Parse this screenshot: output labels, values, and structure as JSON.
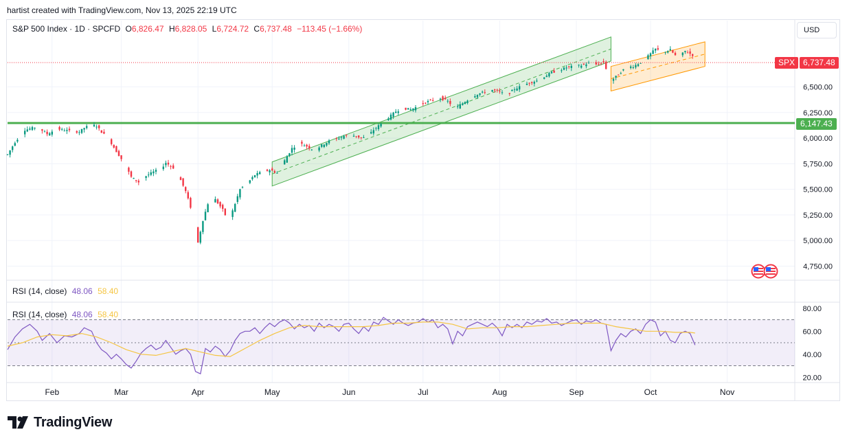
{
  "caption": "hartist created with TradingView.com, Nov 13, 2025 22:19 UTC",
  "main_legend": {
    "symbol": "S&P 500 Index · 1D · SPCFD",
    "o_label": "O",
    "o_value": "6,826.47",
    "h_label": "H",
    "h_value": "6,828.05",
    "l_label": "L",
    "l_value": "6,724.72",
    "c_label": "C",
    "c_value": "6,737.48",
    "change": "−113.45 (−1.66%)"
  },
  "currency_button": "USD",
  "price_tag": {
    "symbol": "SPX",
    "value": "6,737.48"
  },
  "level_tag": {
    "value": "6,147.43"
  },
  "rsi_legend": {
    "label": "RSI (14, close)",
    "rsi": "48.06",
    "ma": "58.40"
  },
  "brand": "TradingView",
  "chart_data": [
    {
      "type": "candlestick",
      "title": "S&P 500 Index · 1D · SPCFD",
      "ylim": [
        4650,
        7200
      ],
      "y_ticks": [
        "6,500.00",
        "6,250.00",
        "6,000.00",
        "5,750.00",
        "5,500.00",
        "5,250.00",
        "5,000.00",
        "4,750.00"
      ],
      "y_tick_values": [
        6500,
        6250,
        6000,
        5750,
        5500,
        5250,
        5000,
        4750
      ],
      "x_ticks": [
        "Feb",
        "Mar",
        "Apr",
        "May",
        "Jun",
        "Jul",
        "Aug",
        "Sep",
        "Oct",
        "Nov"
      ],
      "x_tick_days": [
        18,
        46,
        77,
        107,
        138,
        168,
        199,
        230,
        260,
        291
      ],
      "last_close": 6737.48,
      "horizontal_level": 6147.43,
      "close_path": [
        [
          0,
          5840
        ],
        [
          3,
          5960
        ],
        [
          7,
          6080
        ],
        [
          12,
          6110
        ],
        [
          16,
          6040
        ],
        [
          20,
          6090
        ],
        [
          25,
          6070
        ],
        [
          29,
          6060
        ],
        [
          31,
          6100
        ],
        [
          34,
          6130
        ],
        [
          36,
          6118
        ],
        [
          38,
          6060
        ],
        [
          41,
          5990
        ],
        [
          44,
          5870
        ],
        [
          47,
          5760
        ],
        [
          50,
          5620
        ],
        [
          53,
          5570
        ],
        [
          56,
          5630
        ],
        [
          59,
          5670
        ],
        [
          62,
          5700
        ],
        [
          64,
          5760
        ],
        [
          67,
          5710
        ],
        [
          70,
          5590
        ],
        [
          72,
          5480
        ],
        [
          75,
          5250
        ],
        [
          77,
          4980
        ],
        [
          79,
          5200
        ],
        [
          81,
          5360
        ],
        [
          84,
          5400
        ],
        [
          87,
          5300
        ],
        [
          89,
          5200
        ],
        [
          91,
          5290
        ],
        [
          94,
          5500
        ],
        [
          97,
          5560
        ],
        [
          100,
          5640
        ],
        [
          103,
          5670
        ],
        [
          106,
          5690
        ],
        [
          109,
          5660
        ],
        [
          112,
          5780
        ],
        [
          115,
          5900
        ],
        [
          118,
          5950
        ],
        [
          121,
          5920
        ],
        [
          124,
          5880
        ],
        [
          127,
          5930
        ],
        [
          130,
          5970
        ],
        [
          133,
          5990
        ],
        [
          136,
          6020
        ],
        [
          139,
          6030
        ],
        [
          142,
          6010
        ],
        [
          145,
          6000
        ],
        [
          148,
          6080
        ],
        [
          151,
          6140
        ],
        [
          154,
          6200
        ],
        [
          157,
          6260
        ],
        [
          160,
          6290
        ],
        [
          163,
          6280
        ],
        [
          166,
          6310
        ],
        [
          169,
          6350
        ],
        [
          172,
          6370
        ],
        [
          175,
          6390
        ],
        [
          178,
          6360
        ],
        [
          181,
          6290
        ],
        [
          184,
          6340
        ],
        [
          187,
          6390
        ],
        [
          190,
          6430
        ],
        [
          193,
          6450
        ],
        [
          196,
          6470
        ],
        [
          199,
          6450
        ],
        [
          202,
          6420
        ],
        [
          205,
          6480
        ],
        [
          208,
          6510
        ],
        [
          211,
          6540
        ],
        [
          214,
          6560
        ],
        [
          217,
          6600
        ],
        [
          220,
          6640
        ],
        [
          223,
          6660
        ],
        [
          226,
          6690
        ],
        [
          229,
          6700
        ],
        [
          232,
          6710
        ],
        [
          235,
          6730
        ],
        [
          238,
          6720
        ],
        [
          241,
          6740
        ],
        [
          244,
          6560
        ],
        [
          247,
          6620
        ],
        [
          250,
          6690
        ],
        [
          253,
          6700
        ],
        [
          256,
          6740
        ],
        [
          259,
          6800
        ],
        [
          262,
          6870
        ],
        [
          265,
          6840
        ],
        [
          268,
          6860
        ],
        [
          271,
          6780
        ],
        [
          274,
          6850
        ],
        [
          277,
          6810
        ],
        [
          279,
          6737
        ]
      ],
      "channels": [
        {
          "name": "",
          "color": "#4caf50",
          "from": [
            107,
            5650
          ],
          "to": [
            244,
            6870
          ],
          "width": 235
        },
        {
          "name": "",
          "color": "#ff9800",
          "from": [
            244,
            6580
          ],
          "to": [
            282,
            6820
          ],
          "width": 240
        }
      ]
    },
    {
      "type": "line",
      "title": "RSI (14, close)",
      "ylim": [
        15,
        85
      ],
      "y_ticks": [
        "80.00",
        "60.00",
        "40.00",
        "20.00"
      ],
      "y_tick_values": [
        80,
        60,
        40,
        20
      ],
      "bands": {
        "upper": 70,
        "middle": 50,
        "lower": 30
      },
      "series": [
        {
          "name": "RSI",
          "color": "#7e57c2",
          "values": [
            [
              0,
              44
            ],
            [
              3,
              55
            ],
            [
              6,
              62
            ],
            [
              9,
              66
            ],
            [
              12,
              60
            ],
            [
              14,
              52
            ],
            [
              17,
              58
            ],
            [
              20,
              50
            ],
            [
              23,
              56
            ],
            [
              26,
              55
            ],
            [
              29,
              58
            ],
            [
              31,
              63
            ],
            [
              34,
              60
            ],
            [
              36,
              50
            ],
            [
              38,
              44
            ],
            [
              40,
              41
            ],
            [
              42,
              36
            ],
            [
              44,
              40
            ],
            [
              46,
              36
            ],
            [
              48,
              31
            ],
            [
              50,
              28
            ],
            [
              52,
              34
            ],
            [
              54,
              41
            ],
            [
              56,
              45
            ],
            [
              58,
              48
            ],
            [
              60,
              44
            ],
            [
              62,
              46
            ],
            [
              64,
              52
            ],
            [
              66,
              46
            ],
            [
              68,
              40
            ],
            [
              70,
              43
            ],
            [
              72,
              45
            ],
            [
              74,
              40
            ],
            [
              76,
              25
            ],
            [
              78,
              23
            ],
            [
              80,
              45
            ],
            [
              82,
              42
            ],
            [
              84,
              47
            ],
            [
              86,
              44
            ],
            [
              88,
              38
            ],
            [
              90,
              43
            ],
            [
              92,
              52
            ],
            [
              94,
              58
            ],
            [
              96,
              60
            ],
            [
              98,
              60
            ],
            [
              100,
              63
            ],
            [
              102,
              58
            ],
            [
              104,
              63
            ],
            [
              106,
              67
            ],
            [
              108,
              64
            ],
            [
              110,
              68
            ],
            [
              112,
              70
            ],
            [
              114,
              67
            ],
            [
              116,
              62
            ],
            [
              118,
              66
            ],
            [
              120,
              63
            ],
            [
              122,
              65
            ],
            [
              124,
              60
            ],
            [
              126,
              67
            ],
            [
              128,
              63
            ],
            [
              130,
              66
            ],
            [
              132,
              64
            ],
            [
              134,
              60
            ],
            [
              136,
              66
            ],
            [
              138,
              67
            ],
            [
              140,
              62
            ],
            [
              142,
              58
            ],
            [
              144,
              64
            ],
            [
              146,
              60
            ],
            [
              148,
              68
            ],
            [
              150,
              66
            ],
            [
              152,
              72
            ],
            [
              154,
              69
            ],
            [
              156,
              66
            ],
            [
              158,
              70
            ],
            [
              160,
              67
            ],
            [
              162,
              65
            ],
            [
              164,
              67
            ],
            [
              166,
              68
            ],
            [
              168,
              71
            ],
            [
              170,
              68
            ],
            [
              172,
              70
            ],
            [
              174,
              63
            ],
            [
              176,
              66
            ],
            [
              178,
              62
            ],
            [
              180,
              49
            ],
            [
              182,
              60
            ],
            [
              184,
              56
            ],
            [
              186,
              64
            ],
            [
              188,
              66
            ],
            [
              190,
              68
            ],
            [
              192,
              66
            ],
            [
              194,
              64
            ],
            [
              196,
              67
            ],
            [
              198,
              63
            ],
            [
              200,
              56
            ],
            [
              202,
              66
            ],
            [
              204,
              63
            ],
            [
              206,
              66
            ],
            [
              208,
              63
            ],
            [
              210,
              68
            ],
            [
              212,
              66
            ],
            [
              214,
              69
            ],
            [
              216,
              68
            ],
            [
              218,
              71
            ],
            [
              220,
              67
            ],
            [
              222,
              68
            ],
            [
              224,
              65
            ],
            [
              226,
              67
            ],
            [
              228,
              69
            ],
            [
              230,
              70
            ],
            [
              232,
              66
            ],
            [
              234,
              69
            ],
            [
              236,
              68
            ],
            [
              238,
              70
            ],
            [
              240,
              67
            ],
            [
              242,
              66
            ],
            [
              244,
              43
            ],
            [
              246,
              52
            ],
            [
              248,
              58
            ],
            [
              250,
              55
            ],
            [
              252,
              60
            ],
            [
              254,
              62
            ],
            [
              256,
              58
            ],
            [
              258,
              66
            ],
            [
              260,
              70
            ],
            [
              262,
              68
            ],
            [
              264,
              56
            ],
            [
              266,
              60
            ],
            [
              268,
              52
            ],
            [
              270,
              50
            ],
            [
              272,
              58
            ],
            [
              274,
              60
            ],
            [
              276,
              58
            ],
            [
              278,
              48
            ]
          ]
        },
        {
          "name": "MA",
          "color": "#f5c542",
          "values": [
            [
              0,
              47
            ],
            [
              6,
              50
            ],
            [
              12,
              55
            ],
            [
              18,
              57
            ],
            [
              24,
              56
            ],
            [
              30,
              58
            ],
            [
              36,
              55
            ],
            [
              42,
              50
            ],
            [
              48,
              44
            ],
            [
              54,
              40
            ],
            [
              60,
              39
            ],
            [
              66,
              42
            ],
            [
              72,
              45
            ],
            [
              78,
              42
            ],
            [
              84,
              39
            ],
            [
              90,
              38
            ],
            [
              96,
              45
            ],
            [
              102,
              52
            ],
            [
              108,
              58
            ],
            [
              114,
              63
            ],
            [
              120,
              65
            ],
            [
              126,
              64
            ],
            [
              132,
              64
            ],
            [
              138,
              64
            ],
            [
              144,
              64
            ],
            [
              150,
              65
            ],
            [
              156,
              67
            ],
            [
              162,
              67
            ],
            [
              168,
              68
            ],
            [
              174,
              68
            ],
            [
              180,
              66
            ],
            [
              186,
              62
            ],
            [
              192,
              63
            ],
            [
              198,
              63
            ],
            [
              204,
              64
            ],
            [
              210,
              64
            ],
            [
              216,
              65
            ],
            [
              222,
              66
            ],
            [
              228,
              67
            ],
            [
              234,
              67
            ],
            [
              240,
              67
            ],
            [
              246,
              64
            ],
            [
              252,
              62
            ],
            [
              258,
              60
            ],
            [
              264,
              60
            ],
            [
              270,
              59
            ],
            [
              276,
              59
            ],
            [
              278,
              58.4
            ]
          ]
        }
      ]
    }
  ]
}
